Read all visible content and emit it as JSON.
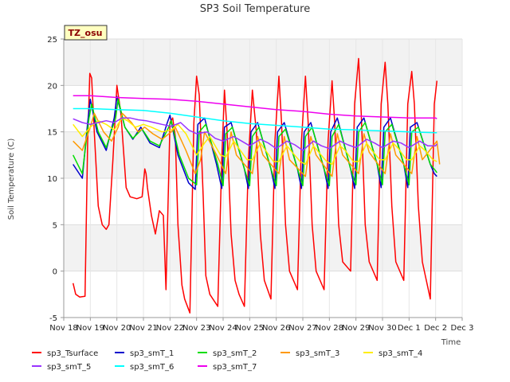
{
  "chart_data": {
    "type": "line",
    "title": "SP3 Soil Temperature",
    "ylabel": "Soil Temperature (C)",
    "xlabel": "Time",
    "site_label": "TZ_osu",
    "ylim": [
      -5,
      25
    ],
    "yticks": [
      -5,
      0,
      5,
      10,
      15,
      20,
      25
    ],
    "xlim": [
      0,
      15
    ],
    "xticks": [
      {
        "pos": 0,
        "label": "Nov 18"
      },
      {
        "pos": 1,
        "label": "Nov 19"
      },
      {
        "pos": 2,
        "label": "Nov 20"
      },
      {
        "pos": 3,
        "label": "Nov 21"
      },
      {
        "pos": 4,
        "label": "Nov 22"
      },
      {
        "pos": 5,
        "label": "Nov 23"
      },
      {
        "pos": 6,
        "label": "Nov 24"
      },
      {
        "pos": 7,
        "label": "Nov 25"
      },
      {
        "pos": 8,
        "label": "Nov 26"
      },
      {
        "pos": 9,
        "label": "Nov 27"
      },
      {
        "pos": 10,
        "label": "Nov 28"
      },
      {
        "pos": 11,
        "label": "Nov 29"
      },
      {
        "pos": 12,
        "label": "Nov 30"
      },
      {
        "pos": 13,
        "label": "Dec 1"
      },
      {
        "pos": 14,
        "label": "Dec 2"
      },
      {
        "pos": 15,
        "label": "Dec 3"
      }
    ],
    "x_unit": "days since Nov 18",
    "series": [
      {
        "name": "sp3_Tsurface",
        "color": "#ff0000",
        "x": [
          0.35,
          0.45,
          0.6,
          0.8,
          0.9,
          0.98,
          1.05,
          1.15,
          1.3,
          1.45,
          1.6,
          1.7,
          1.85,
          2.0,
          2.15,
          2.35,
          2.5,
          2.75,
          2.95,
          3.05,
          3.1,
          3.15,
          3.3,
          3.45,
          3.6,
          3.75,
          3.85,
          4.0,
          4.1,
          4.2,
          4.3,
          4.45,
          4.55,
          4.75,
          4.9,
          5.0,
          5.1,
          5.25,
          5.35,
          5.5,
          5.8,
          5.95,
          6.05,
          6.15,
          6.3,
          6.45,
          6.6,
          6.8,
          6.95,
          7.1,
          7.25,
          7.4,
          7.55,
          7.8,
          7.95,
          8.1,
          8.2,
          8.35,
          8.5,
          8.8,
          8.95,
          9.1,
          9.2,
          9.35,
          9.5,
          9.8,
          9.95,
          10.1,
          10.2,
          10.35,
          10.5,
          10.8,
          10.95,
          11.1,
          11.2,
          11.35,
          11.5,
          11.8,
          11.95,
          12.1,
          12.2,
          12.35,
          12.5,
          12.8,
          12.95,
          13.1,
          13.2,
          13.35,
          13.5,
          13.8,
          13.95,
          14.05
        ],
        "y": [
          -1.3,
          -2.5,
          -2.8,
          -2.7,
          14.0,
          21.3,
          20.8,
          15.0,
          7.0,
          5.0,
          4.5,
          5.0,
          12.0,
          20.0,
          17.0,
          9.0,
          8.0,
          7.8,
          8.0,
          11.0,
          10.5,
          9.0,
          6.0,
          4.0,
          6.5,
          6.0,
          -2.0,
          16.0,
          16.5,
          14.5,
          5.0,
          -1.5,
          -3.0,
          -4.5,
          16.0,
          21.0,
          19.0,
          8.0,
          -0.5,
          -2.5,
          -3.8,
          12.0,
          19.5,
          15.0,
          4.0,
          -1.0,
          -2.5,
          -3.8,
          12.0,
          19.5,
          15.0,
          4.0,
          -1.0,
          -3.0,
          14.0,
          21.0,
          16.0,
          5.0,
          0.0,
          -2.0,
          14.0,
          21.0,
          16.0,
          5.0,
          0.0,
          -2.0,
          14.0,
          20.5,
          16.0,
          5.0,
          1.0,
          0.0,
          18.0,
          22.9,
          17.0,
          5.0,
          1.0,
          -1.0,
          18.0,
          22.5,
          18.0,
          7.0,
          1.0,
          -1.0,
          18.0,
          21.5,
          18.0,
          7.0,
          1.0,
          -3.0,
          18.0,
          20.5
        ]
      },
      {
        "name": "sp3_smT_1",
        "color": "#0000cc",
        "x": [
          0.35,
          0.7,
          0.9,
          1.0,
          1.25,
          1.6,
          1.9,
          2.0,
          2.3,
          2.6,
          2.9,
          3.25,
          3.6,
          3.9,
          4.0,
          4.3,
          4.7,
          4.95,
          5.05,
          5.3,
          5.75,
          5.95,
          6.05,
          6.3,
          6.8,
          6.95,
          7.05,
          7.3,
          7.8,
          7.95,
          8.05,
          8.3,
          8.8,
          8.95,
          9.05,
          9.3,
          9.8,
          9.95,
          10.05,
          10.3,
          10.8,
          10.95,
          11.05,
          11.3,
          11.8,
          11.95,
          12.05,
          12.3,
          12.8,
          12.95,
          13.05,
          13.3,
          13.8,
          13.95,
          14.05
        ],
        "y": [
          11.5,
          10.0,
          16.0,
          18.5,
          15.0,
          13.0,
          16.5,
          18.8,
          15.5,
          14.2,
          15.5,
          13.8,
          13.3,
          16.0,
          16.8,
          12.5,
          9.5,
          8.8,
          15.8,
          16.5,
          11.5,
          8.9,
          15.5,
          16.0,
          11.0,
          8.9,
          15.0,
          16.0,
          11.0,
          8.9,
          15.0,
          16.0,
          11.0,
          8.9,
          15.0,
          16.0,
          11.0,
          8.9,
          15.0,
          16.5,
          11.0,
          8.9,
          15.5,
          16.5,
          11.5,
          9.0,
          15.5,
          16.5,
          11.5,
          9.0,
          15.5,
          16.0,
          11.5,
          10.5,
          10.2
        ]
      },
      {
        "name": "sp3_smT_2",
        "color": "#00dd00",
        "x": [
          0.35,
          0.7,
          0.95,
          1.05,
          1.3,
          1.6,
          1.95,
          2.05,
          2.3,
          2.6,
          2.95,
          3.25,
          3.6,
          3.95,
          4.05,
          4.35,
          4.7,
          5.0,
          5.1,
          5.35,
          5.8,
          6.0,
          6.1,
          6.35,
          6.8,
          7.0,
          7.1,
          7.35,
          7.8,
          8.0,
          8.1,
          8.35,
          8.8,
          9.0,
          9.1,
          9.35,
          9.8,
          10.0,
          10.1,
          10.35,
          10.8,
          11.0,
          11.1,
          11.35,
          11.8,
          12.0,
          12.1,
          12.35,
          12.8,
          13.0,
          13.1,
          13.35,
          13.8,
          14.0,
          14.05
        ],
        "y": [
          12.5,
          10.5,
          16.5,
          18.0,
          15.0,
          13.3,
          16.5,
          18.5,
          15.5,
          14.3,
          15.3,
          14.0,
          13.5,
          15.5,
          16.2,
          12.5,
          10.0,
          9.3,
          15.0,
          15.8,
          11.5,
          9.2,
          14.8,
          15.5,
          11.0,
          9.2,
          14.5,
          15.5,
          11.0,
          9.2,
          14.5,
          15.3,
          11.0,
          9.2,
          14.5,
          15.5,
          11.0,
          9.2,
          14.5,
          15.8,
          11.0,
          9.3,
          15.0,
          16.0,
          11.5,
          9.3,
          15.0,
          15.8,
          11.5,
          9.3,
          15.0,
          15.5,
          11.5,
          10.8,
          10.6
        ]
      },
      {
        "name": "sp3_smT_3",
        "color": "#ff9900",
        "x": [
          0.35,
          0.7,
          1.0,
          1.15,
          1.5,
          1.8,
          2.05,
          2.2,
          2.55,
          2.8,
          3.05,
          3.35,
          3.7,
          4.05,
          4.2,
          4.6,
          4.95,
          5.15,
          5.3,
          5.7,
          6.1,
          6.3,
          6.5,
          7.1,
          7.3,
          7.5,
          8.1,
          8.3,
          8.5,
          9.1,
          9.3,
          9.5,
          10.1,
          10.3,
          10.5,
          11.1,
          11.3,
          11.5,
          12.1,
          12.3,
          12.5,
          13.1,
          13.3,
          13.5,
          14.05,
          14.15
        ],
        "y": [
          14.0,
          13.0,
          15.5,
          17.0,
          15.0,
          14.0,
          15.5,
          17.0,
          16.0,
          15.0,
          15.5,
          14.8,
          14.2,
          15.0,
          15.5,
          13.0,
          10.5,
          12.0,
          15.0,
          12.8,
          10.5,
          15.0,
          12.5,
          10.5,
          14.5,
          12.5,
          10.5,
          14.5,
          12.0,
          10.2,
          14.5,
          12.5,
          10.2,
          14.8,
          12.5,
          10.5,
          14.8,
          12.8,
          10.5,
          14.8,
          12.5,
          10.5,
          14.5,
          12.0,
          14.0,
          11.5
        ]
      },
      {
        "name": "sp3_smT_4",
        "color": "#ffee00",
        "x": [
          0.35,
          0.7,
          1.0,
          1.3,
          1.6,
          1.9,
          2.2,
          2.4,
          2.7,
          3.0,
          3.3,
          3.7,
          4.05,
          4.3,
          4.6,
          5.0,
          5.3,
          5.5,
          5.9,
          6.1,
          6.4,
          6.6,
          6.9,
          7.1,
          7.4,
          7.6,
          7.9,
          8.1,
          8.4,
          8.6,
          8.9,
          9.1,
          9.4,
          9.6,
          9.9,
          10.1,
          10.4,
          10.6,
          10.9,
          11.1,
          11.4,
          11.6,
          11.9,
          12.1,
          12.4,
          12.6,
          12.9,
          13.1,
          13.4,
          13.6,
          13.9,
          14.05
        ],
        "y": [
          15.8,
          14.5,
          15.5,
          16.2,
          15.8,
          15.2,
          16.5,
          16.2,
          15.5,
          15.8,
          15.5,
          15.0,
          15.2,
          15.8,
          14.8,
          12.5,
          13.8,
          14.5,
          12.5,
          12.3,
          14.0,
          13.2,
          12.0,
          12.0,
          13.8,
          13.0,
          11.8,
          11.8,
          13.5,
          12.8,
          11.8,
          11.5,
          13.5,
          12.8,
          11.8,
          11.5,
          13.5,
          13.0,
          11.8,
          11.8,
          13.8,
          13.0,
          12.0,
          12.0,
          13.8,
          13.2,
          12.0,
          12.0,
          13.5,
          13.0,
          12.0,
          11.8
        ]
      },
      {
        "name": "sp3_smT_5",
        "color": "#9933ff",
        "x": [
          0.35,
          0.7,
          1.0,
          1.3,
          1.6,
          1.9,
          2.2,
          2.5,
          2.8,
          3.1,
          3.4,
          3.7,
          4.05,
          4.4,
          4.7,
          5.0,
          5.4,
          5.7,
          6.0,
          6.4,
          6.7,
          7.0,
          7.4,
          7.7,
          8.0,
          8.4,
          8.7,
          9.0,
          9.4,
          9.7,
          10.0,
          10.4,
          10.7,
          11.0,
          11.4,
          11.7,
          12.0,
          12.4,
          12.7,
          13.0,
          13.4,
          13.7,
          14.0,
          14.05
        ],
        "y": [
          16.4,
          16.0,
          15.8,
          16.0,
          16.2,
          16.0,
          16.5,
          16.5,
          16.3,
          16.2,
          16.0,
          15.8,
          15.6,
          16.0,
          15.2,
          14.8,
          15.0,
          14.3,
          14.0,
          14.5,
          14.0,
          13.5,
          14.2,
          13.8,
          13.2,
          14.0,
          13.6,
          13.0,
          14.0,
          13.5,
          13.2,
          14.0,
          13.6,
          13.3,
          14.2,
          13.8,
          13.3,
          14.0,
          13.8,
          13.3,
          14.0,
          13.5,
          13.5,
          13.7
        ]
      },
      {
        "name": "sp3_smT_6",
        "color": "#00ffff",
        "x": [
          0.35,
          1.0,
          2.0,
          3.0,
          4.0,
          5.0,
          6.0,
          7.0,
          8.0,
          9.0,
          10.0,
          11.0,
          12.0,
          13.0,
          14.0,
          14.05
        ],
        "y": [
          17.5,
          17.5,
          17.4,
          17.3,
          17.0,
          16.6,
          16.2,
          15.9,
          15.7,
          15.5,
          15.3,
          15.2,
          15.1,
          15.0,
          14.9,
          14.9
        ]
      },
      {
        "name": "sp3_smT_7",
        "color": "#ee00ee",
        "x": [
          0.35,
          1.0,
          2.0,
          3.0,
          4.0,
          5.0,
          6.0,
          7.0,
          8.0,
          9.0,
          10.0,
          11.0,
          12.0,
          13.0,
          14.0,
          14.05
        ],
        "y": [
          18.9,
          18.9,
          18.7,
          18.6,
          18.5,
          18.3,
          18.0,
          17.7,
          17.4,
          17.2,
          16.9,
          16.7,
          16.6,
          16.5,
          16.5,
          16.4
        ]
      }
    ]
  }
}
